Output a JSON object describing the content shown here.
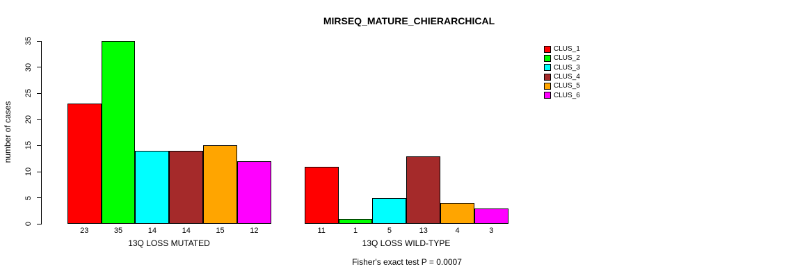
{
  "chart_data": {
    "type": "bar",
    "title": "MIRSEQ_MATURE_CHIERARCHICAL",
    "ylabel": "number of cases",
    "xlabel": "",
    "ylim": [
      0,
      35
    ],
    "yticks": [
      0,
      5,
      10,
      15,
      20,
      25,
      30,
      35
    ],
    "grid": false,
    "legend_position": "right",
    "series_names": [
      "CLUS_1",
      "CLUS_2",
      "CLUS_3",
      "CLUS_4",
      "CLUS_5",
      "CLUS_6"
    ],
    "colors": [
      "#FF0000",
      "#00FF00",
      "#00FFFF",
      "#A52A2A",
      "#FFA500",
      "#FF00FF"
    ],
    "groups": [
      {
        "label": "13Q LOSS MUTATED",
        "values": [
          23,
          35,
          14,
          14,
          15,
          12
        ]
      },
      {
        "label": "13Q LOSS WILD-TYPE",
        "values": [
          11,
          1,
          5,
          13,
          4,
          3
        ]
      }
    ],
    "bar_value_labels_shown": true,
    "annotation": "Fisher's exact test P = 0.0007"
  }
}
